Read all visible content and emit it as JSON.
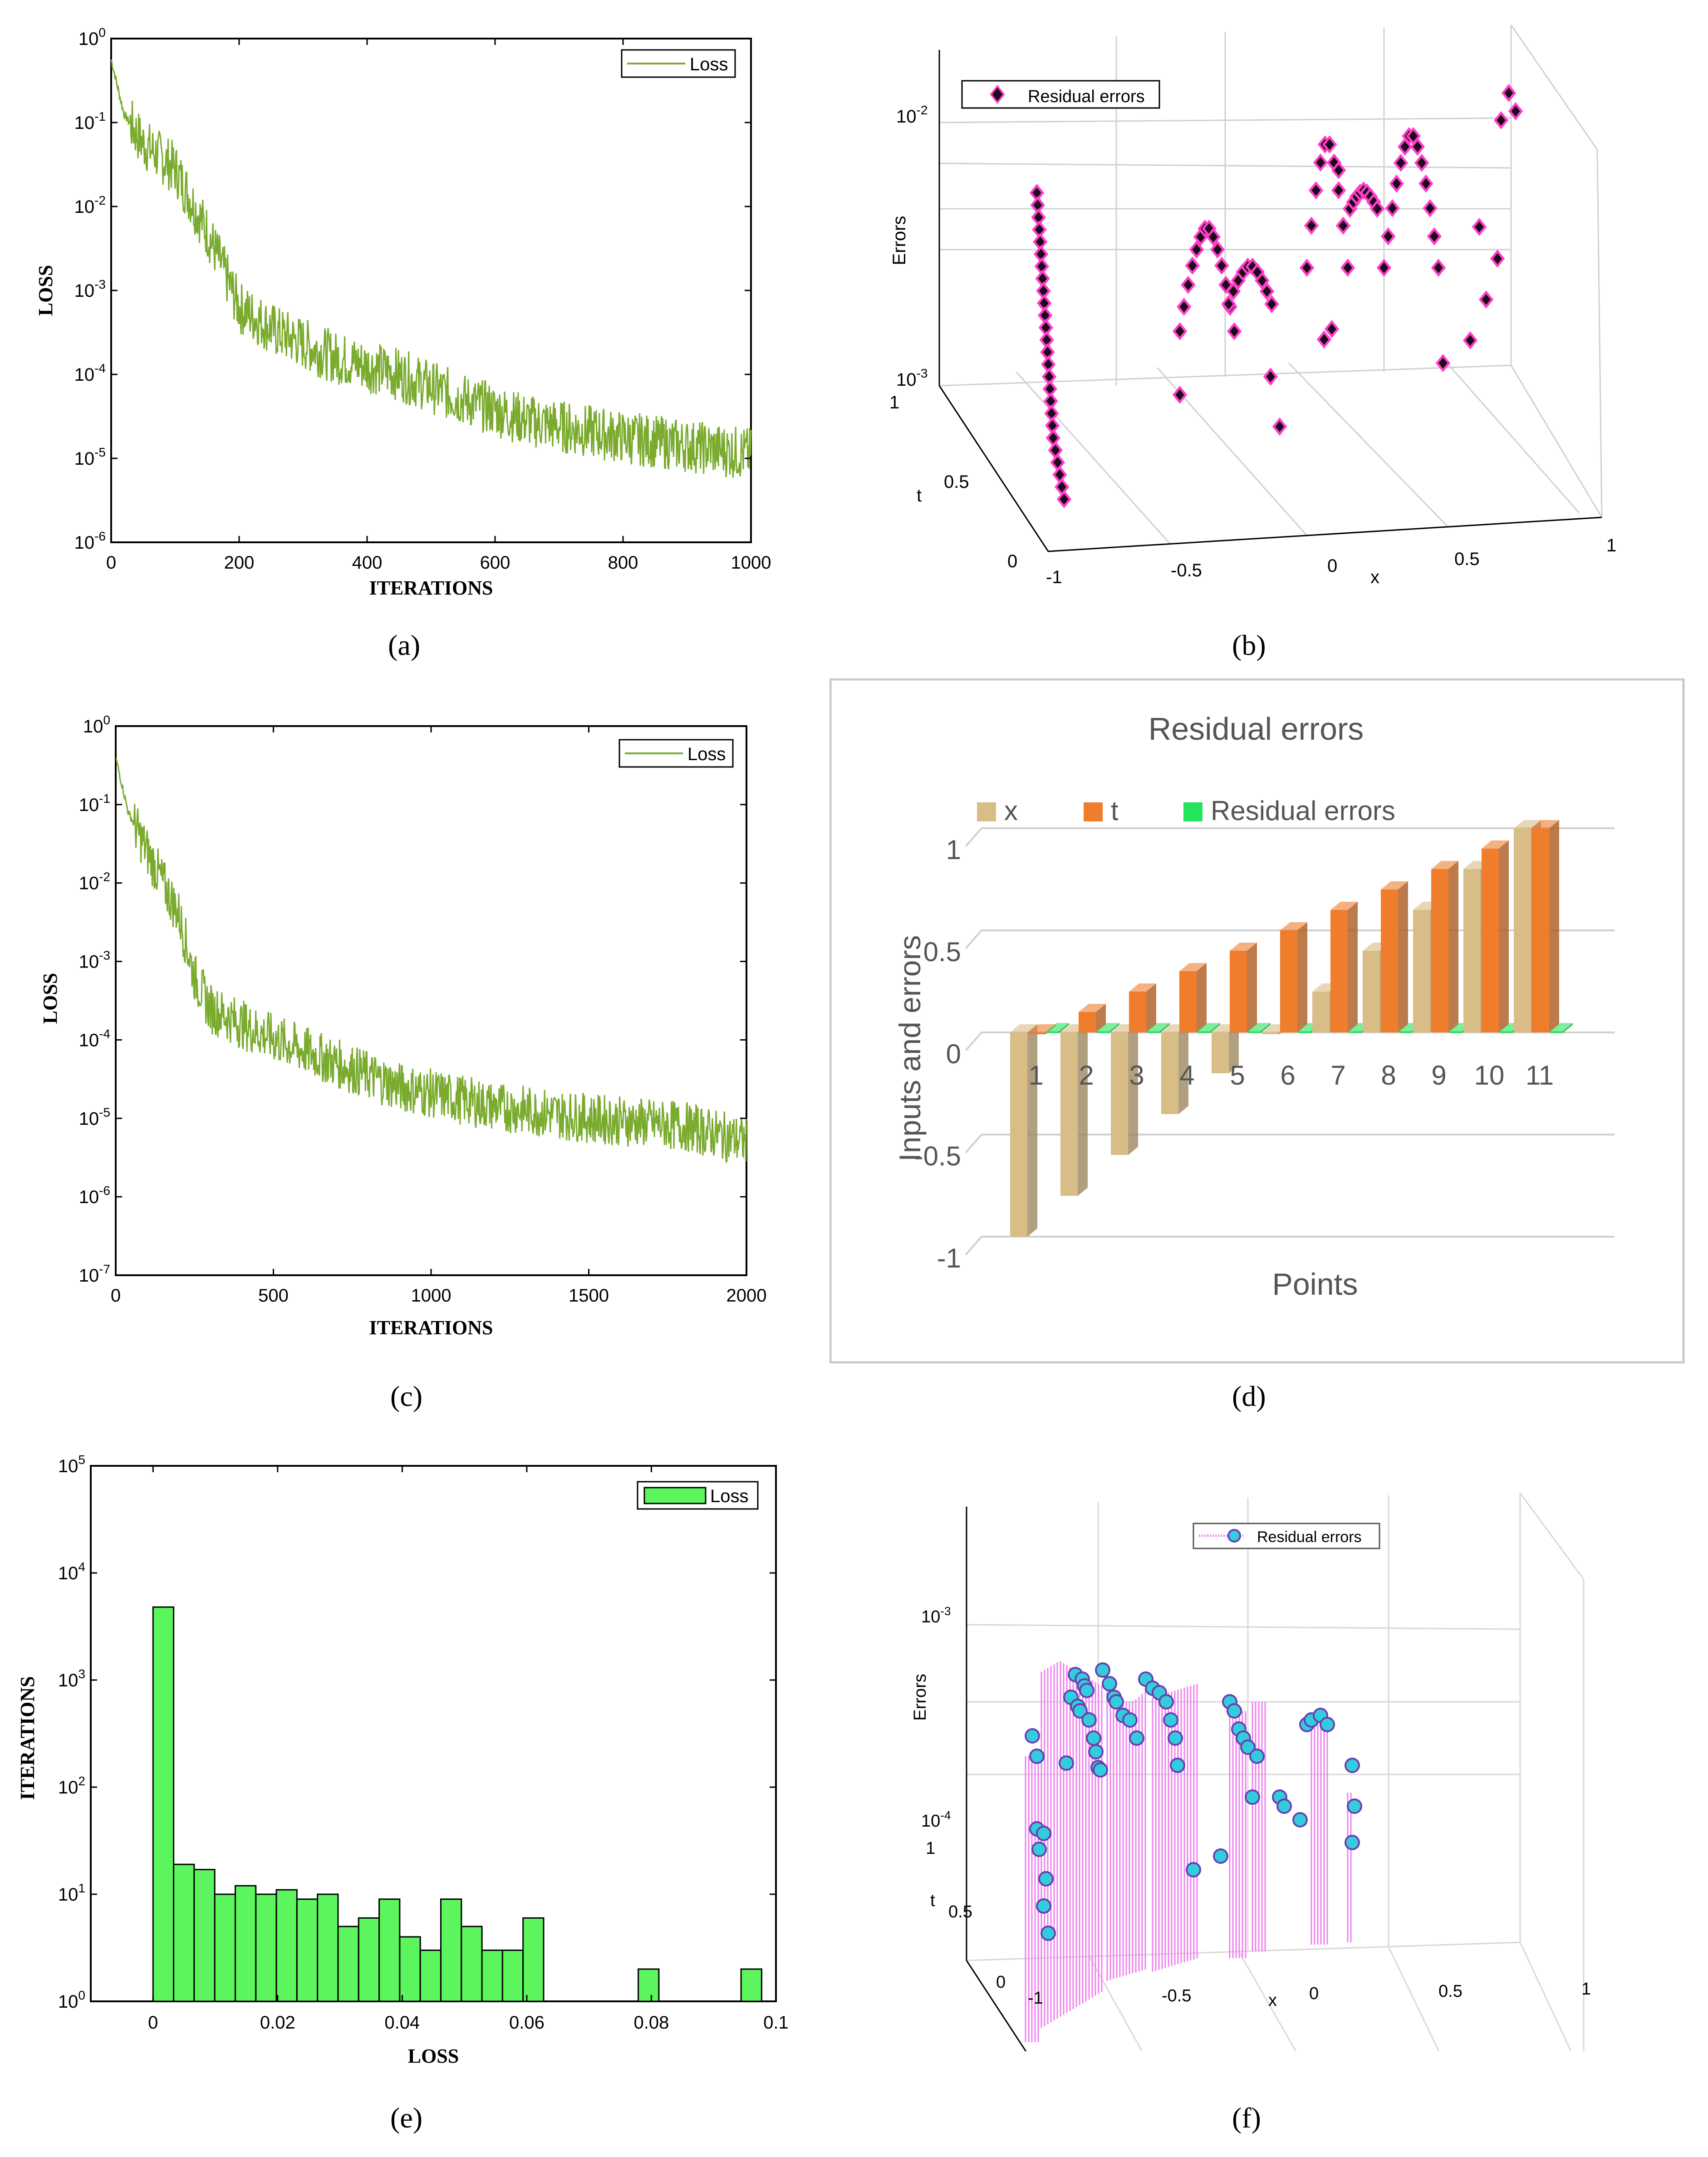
{
  "captions": {
    "a": "(a)",
    "b": "(b)",
    "c": "(c)",
    "d": "(d)",
    "e": "(e)",
    "f": "(f)"
  },
  "colors": {
    "loss_line": "#7aab2e",
    "hist_fill": "#5df55d",
    "diamond": "#1a0a1a",
    "diamond_edge": "#ff3dc8",
    "stem": "#ee82ee",
    "circle_fill": "#33ccdd",
    "circle_edge": "#6a3fb0",
    "bar_x": "#d9bd86",
    "bar_t": "#ef7d2c",
    "bar_res": "#25e35a"
  },
  "chart_data": [
    {
      "id": "a",
      "type": "line",
      "xlabel": "ITERATIONS",
      "ylabel": "LOSS",
      "xlim": [
        0,
        1000
      ],
      "ylim": [
        -6,
        0
      ],
      "yscale": "log",
      "xticks": [
        "0",
        "200",
        "400",
        "600",
        "800",
        "1000"
      ],
      "yticks": [
        "10^-6",
        "10^-5",
        "10^-4",
        "10^-3",
        "10^-2",
        "10^-1",
        "10^0"
      ],
      "legend": "Loss",
      "legend_pos": "top-right",
      "series": [
        {
          "name": "Loss",
          "anchors_x": [
            0,
            20,
            50,
            100,
            150,
            200,
            260,
            350,
            450,
            550,
            650,
            800,
            1000
          ],
          "anchors_log10": [
            -0.25,
            -0.9,
            -1.25,
            -1.55,
            -2.3,
            -3.2,
            -3.5,
            -3.8,
            -4.0,
            -4.3,
            -4.55,
            -4.75,
            -4.95
          ]
        }
      ]
    },
    {
      "id": "b",
      "type": "scatter3d",
      "title": "",
      "legend": "Residual errors",
      "legend_pos": "top-left",
      "zlabel": "Errors",
      "xlabel": "x",
      "ylabel": "t",
      "zticks": [
        "10^-2",
        "10^-3"
      ],
      "xticks": [
        "-1",
        "-0.5",
        "0",
        "0.5",
        "1"
      ],
      "yticks": [
        "0",
        "0.5",
        "1"
      ],
      "zrange_log10": [
        -3,
        -2
      ],
      "xrange": [
        -1,
        1
      ],
      "points_log10_error": [
        -2.25,
        -2.35,
        -2.45,
        -2.55,
        -2.6,
        -2.7,
        -2.8,
        -2.9,
        -2.95,
        -3.0,
        -3.1,
        -3.2,
        -3.3,
        -3.4
      ]
    },
    {
      "id": "c",
      "type": "line",
      "xlabel": "ITERATIONS",
      "ylabel": "LOSS",
      "xlim": [
        0,
        2000
      ],
      "ylim": [
        -7,
        0
      ],
      "yscale": "log",
      "xticks": [
        "0",
        "500",
        "1000",
        "1500",
        "2000"
      ],
      "yticks": [
        "10^-7",
        "10^-6",
        "10^-5",
        "10^-4",
        "10^-3",
        "10^-2",
        "10^-1",
        "10^0"
      ],
      "legend": "Loss",
      "legend_pos": "top-right",
      "series": [
        {
          "name": "Loss",
          "anchors_x": [
            0,
            40,
            100,
            200,
            250,
            300,
            450,
            700,
            900,
            1200,
            1500,
            1800,
            2000
          ],
          "anchors_log10": [
            -0.4,
            -1.1,
            -1.6,
            -2.4,
            -3.2,
            -3.6,
            -3.9,
            -4.3,
            -4.6,
            -4.85,
            -5.0,
            -5.1,
            -5.3
          ]
        }
      ]
    },
    {
      "id": "d",
      "type": "bar3d",
      "title": "Residual errors",
      "xlabel": "Points",
      "ylabel": "Inputs and errors",
      "ylim": [
        -1,
        1
      ],
      "yticks": [
        "-1",
        "-0.5",
        "0",
        "0.5",
        "1"
      ],
      "categories": [
        "1",
        "2",
        "3",
        "4",
        "5",
        "6",
        "7",
        "8",
        "9",
        "10",
        "11"
      ],
      "series": [
        {
          "name": "x",
          "values": [
            -1,
            -0.8,
            -0.6,
            -0.4,
            -0.2,
            0,
            0.2,
            0.4,
            0.6,
            0.8,
            1
          ]
        },
        {
          "name": "t",
          "values": [
            0,
            0.1,
            0.2,
            0.3,
            0.4,
            0.5,
            0.6,
            0.7,
            0.8,
            0.9,
            1
          ]
        },
        {
          "name": "Residual errors",
          "values": [
            0,
            0,
            0,
            0,
            0,
            0,
            0,
            0,
            0,
            0,
            0
          ]
        }
      ]
    },
    {
      "id": "e",
      "type": "bar",
      "xlabel": "LOSS",
      "ylabel": "ITERATIONS",
      "xlim": [
        -0.01,
        0.1
      ],
      "ylim_log10": [
        0,
        5
      ],
      "xticks": [
        "0",
        "0.02",
        "0.04",
        "0.06",
        "0.08",
        "0.1"
      ],
      "yticks": [
        "10^0",
        "10^1",
        "10^2",
        "10^3",
        "10^4",
        "10^5"
      ],
      "legend": "Loss",
      "legend_pos": "top-right",
      "bin_width": 0.0033,
      "bin_starts": [
        0,
        0.0033,
        0.0066,
        0.0099,
        0.0132,
        0.0165,
        0.0198,
        0.0231,
        0.0264,
        0.0297,
        0.033,
        0.0363,
        0.0396,
        0.0429,
        0.0462,
        0.0495,
        0.0528,
        0.0561,
        0.0594,
        0.0779,
        0.0944
      ],
      "counts": [
        4800,
        19,
        17,
        10,
        12,
        10,
        11,
        9,
        10,
        5,
        6,
        9,
        4,
        3,
        9,
        5,
        3,
        3,
        6,
        2,
        2
      ]
    },
    {
      "id": "f",
      "type": "stem3d",
      "legend": "Residual errors",
      "legend_pos": "top",
      "zlabel": "Errors",
      "xlabel": "x",
      "ylabel": "t",
      "zticks": [
        "10^-3",
        "10^-4"
      ],
      "xticks": [
        "-1",
        "-0.5",
        "0",
        "0.5",
        "1"
      ],
      "yticks": [
        "0",
        "0.5",
        "1"
      ],
      "zrange_log10": [
        -4,
        -3
      ]
    }
  ]
}
